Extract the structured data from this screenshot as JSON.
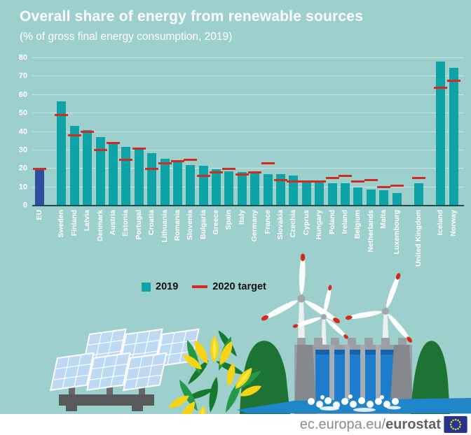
{
  "title": "Overall share of energy from renewable sources",
  "subtitle": "(% of gross final energy consumption, 2019)",
  "colors": {
    "background": "#9dd0cd",
    "bar_2019": "#0ea3a6",
    "bar_eu": "#2f4f9e",
    "target_2020": "#d22b20",
    "gridline": "#c8e5e2",
    "axis": "#1c4b52",
    "chart_text": "#ffffff",
    "legend_text": "#111111",
    "footer_text": "#8a8d90",
    "flag_blue": "#28338c",
    "flag_stars": "#d9d92b"
  },
  "legend": {
    "items": [
      {
        "label": "2019",
        "swatch": "teal-square"
      },
      {
        "label": "2020 target",
        "swatch": "red-dash"
      }
    ]
  },
  "footer": {
    "url_regular": "ec.europa.eu/",
    "url_bold": "eurostat",
    "logo": "eu-flag"
  },
  "illustration_items": [
    "solar-panels",
    "crocus-flowers",
    "wind-turbines",
    "hydro-dam",
    "river"
  ],
  "chart_data": {
    "type": "bar",
    "title": "Overall share of energy from renewable sources",
    "subtitle": "(% of gross final energy consumption, 2019)",
    "unit": "%",
    "ylim": [
      0,
      80
    ],
    "yticks": [
      0,
      10,
      20,
      30,
      40,
      50,
      60,
      70,
      80
    ],
    "grid": true,
    "legend_position": "bottom",
    "series": [
      "2019",
      "2020 target"
    ],
    "bars": [
      {
        "name": "EU",
        "value": 19.7,
        "target": 20,
        "highlight": true,
        "gap_after": true
      },
      {
        "name": "Sweden",
        "value": 56.4,
        "target": 49
      },
      {
        "name": "Finland",
        "value": 43.1,
        "target": 38
      },
      {
        "name": "Latvia",
        "value": 41.0,
        "target": 40
      },
      {
        "name": "Denmark",
        "value": 37.2,
        "target": 30
      },
      {
        "name": "Austria",
        "value": 33.6,
        "target": 34
      },
      {
        "name": "Estonia",
        "value": 31.9,
        "target": 25
      },
      {
        "name": "Portugal",
        "value": 30.6,
        "target": 31
      },
      {
        "name": "Croatia",
        "value": 28.5,
        "target": 20
      },
      {
        "name": "Lithuania",
        "value": 25.5,
        "target": 23
      },
      {
        "name": "Romania",
        "value": 24.3,
        "target": 24
      },
      {
        "name": "Slovenia",
        "value": 22.0,
        "target": 25
      },
      {
        "name": "Bulgaria",
        "value": 21.6,
        "target": 16
      },
      {
        "name": "Greece",
        "value": 19.7,
        "target": 18
      },
      {
        "name": "Spain",
        "value": 18.4,
        "target": 20
      },
      {
        "name": "Italy",
        "value": 18.2,
        "target": 17
      },
      {
        "name": "Germany",
        "value": 17.4,
        "target": 18
      },
      {
        "name": "France",
        "value": 17.2,
        "target": 23
      },
      {
        "name": "Slovakia",
        "value": 16.9,
        "target": 14
      },
      {
        "name": "Czechia",
        "value": 16.2,
        "target": 13
      },
      {
        "name": "Cyprus",
        "value": 13.8,
        "target": 13
      },
      {
        "name": "Hungary",
        "value": 12.6,
        "target": 13
      },
      {
        "name": "Poland",
        "value": 12.2,
        "target": 15
      },
      {
        "name": "Ireland",
        "value": 12.0,
        "target": 16
      },
      {
        "name": "Belgium",
        "value": 9.9,
        "target": 13
      },
      {
        "name": "Netherlands",
        "value": 8.8,
        "target": 14
      },
      {
        "name": "Malta",
        "value": 8.5,
        "target": 10
      },
      {
        "name": "Luxembourg",
        "value": 7.0,
        "target": 11,
        "gap_after": true
      },
      {
        "name": "United Kingdom",
        "value": 12.3,
        "target": 15,
        "gap_after": true
      },
      {
        "name": "Iceland",
        "value": 78.2,
        "target": 64
      },
      {
        "name": "Norway",
        "value": 74.6,
        "target": 67.5
      }
    ]
  }
}
